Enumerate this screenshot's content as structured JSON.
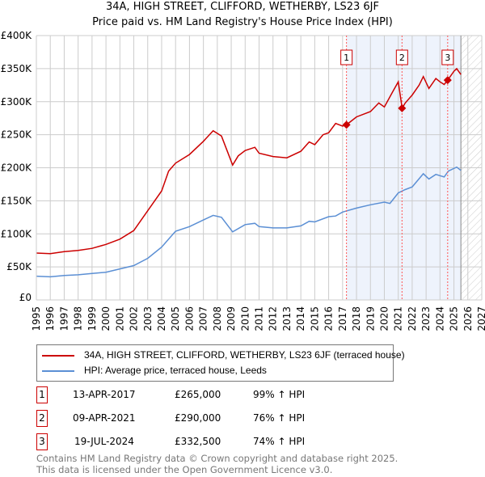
{
  "chart_data": {
    "type": "line",
    "title": "34A, HIGH STREET, CLIFFORD, WETHERBY, LS23 6JF",
    "subtitle": "Price paid vs. HM Land Registry's House Price Index (HPI)",
    "xlim": [
      1995,
      2027
    ],
    "ylim": [
      0,
      400000
    ],
    "y_ticks": [
      {
        "v": 0,
        "label": "£0"
      },
      {
        "v": 50000,
        "label": "£50K"
      },
      {
        "v": 100000,
        "label": "£100K"
      },
      {
        "v": 150000,
        "label": "£150K"
      },
      {
        "v": 200000,
        "label": "£200K"
      },
      {
        "v": 250000,
        "label": "£250K"
      },
      {
        "v": 300000,
        "label": "£300K"
      },
      {
        "v": 350000,
        "label": "£350K"
      },
      {
        "v": 400000,
        "label": "£400K"
      }
    ],
    "x_ticks": [
      "1995",
      "1996",
      "1997",
      "1998",
      "1999",
      "2000",
      "2001",
      "2002",
      "2003",
      "2004",
      "2005",
      "2006",
      "2007",
      "2008",
      "2009",
      "2010",
      "2011",
      "2012",
      "2013",
      "2014",
      "2015",
      "2016",
      "2017",
      "2018",
      "2019",
      "2020",
      "2021",
      "2022",
      "2023",
      "2024",
      "2025",
      "2026",
      "2027"
    ],
    "grid": true,
    "shaded_range": [
      2017.28,
      2025.5
    ],
    "forecast_hatch_from": 2025.5,
    "series": [
      {
        "name": "34A, HIGH STREET, CLIFFORD, WETHERBY, LS23 6JF (terraced house)",
        "color": "#cc0000",
        "x": [
          1995,
          1996,
          1997,
          1998,
          1999,
          2000,
          2001,
          2002,
          2003,
          2004,
          2004.5,
          2005,
          2006,
          2007,
          2007.7,
          2008.3,
          2009.1,
          2009.5,
          2010,
          2010.7,
          2011,
          2012,
          2013,
          2014,
          2014.6,
          2015,
          2015.6,
          2016,
          2016.5,
          2017,
          2017.28,
          2018,
          2019,
          2019.6,
          2020,
          2020.6,
          2021,
          2021.28,
          2021.5,
          2022,
          2022.5,
          2022.8,
          2023.2,
          2023.7,
          2024,
          2024.3,
          2024.55,
          2025,
          2025.2,
          2025.5
        ],
        "y": [
          71000,
          70000,
          73000,
          75000,
          78000,
          84000,
          92000,
          105000,
          135000,
          165000,
          195000,
          207000,
          220000,
          240000,
          256000,
          248000,
          204000,
          218000,
          226000,
          231000,
          222000,
          217000,
          215000,
          225000,
          239000,
          235000,
          250000,
          253000,
          267000,
          263000,
          265000,
          277000,
          285000,
          298000,
          292000,
          315000,
          330000,
          290000,
          298000,
          310000,
          325000,
          338000,
          320000,
          335000,
          330000,
          326000,
          332500,
          346000,
          350000,
          341000
        ]
      },
      {
        "name": "HPI: Average price, terraced house, Leeds",
        "color": "#5b8fd4",
        "x": [
          1995,
          1996,
          1997,
          1998,
          1999,
          2000,
          2001,
          2002,
          2003,
          2004,
          2004.5,
          2005,
          2006,
          2007,
          2007.7,
          2008.3,
          2009.1,
          2010,
          2010.7,
          2011,
          2012,
          2013,
          2014,
          2014.6,
          2015,
          2016,
          2016.5,
          2017,
          2018,
          2019,
          2020,
          2020.4,
          2021,
          2021.5,
          2022,
          2022.8,
          2023.2,
          2023.7,
          2024,
          2024.3,
          2024.6,
          2025.2,
          2025.5
        ],
        "y": [
          36000,
          35000,
          37000,
          38000,
          40000,
          42000,
          47000,
          52000,
          63000,
          80000,
          92000,
          104000,
          111000,
          121000,
          128000,
          125000,
          103000,
          114000,
          116000,
          111000,
          109000,
          109000,
          112000,
          119000,
          118000,
          126000,
          127000,
          133000,
          139000,
          144000,
          148000,
          146000,
          162000,
          167000,
          171000,
          191000,
          183000,
          190000,
          188000,
          186000,
          195000,
          201000,
          196000
        ]
      }
    ],
    "sales": [
      {
        "label": "1",
        "x": 2017.28,
        "price": 265000,
        "date": "13-APR-2017",
        "price_text": "£265,000",
        "hpi": "99% ↑ HPI"
      },
      {
        "label": "2",
        "x": 2021.27,
        "price": 290000,
        "date": "09-APR-2021",
        "price_text": "£290,000",
        "hpi": "76% ↑ HPI"
      },
      {
        "label": "3",
        "x": 2024.55,
        "price": 332500,
        "date": "19-JUL-2024",
        "price_text": "£332,500",
        "hpi": "74% ↑ HPI"
      }
    ]
  },
  "footer": {
    "line1": "Contains HM Land Registry data © Crown copyright and database right 2025.",
    "line2": "This data is licensed under the Open Government Licence v3.0."
  }
}
